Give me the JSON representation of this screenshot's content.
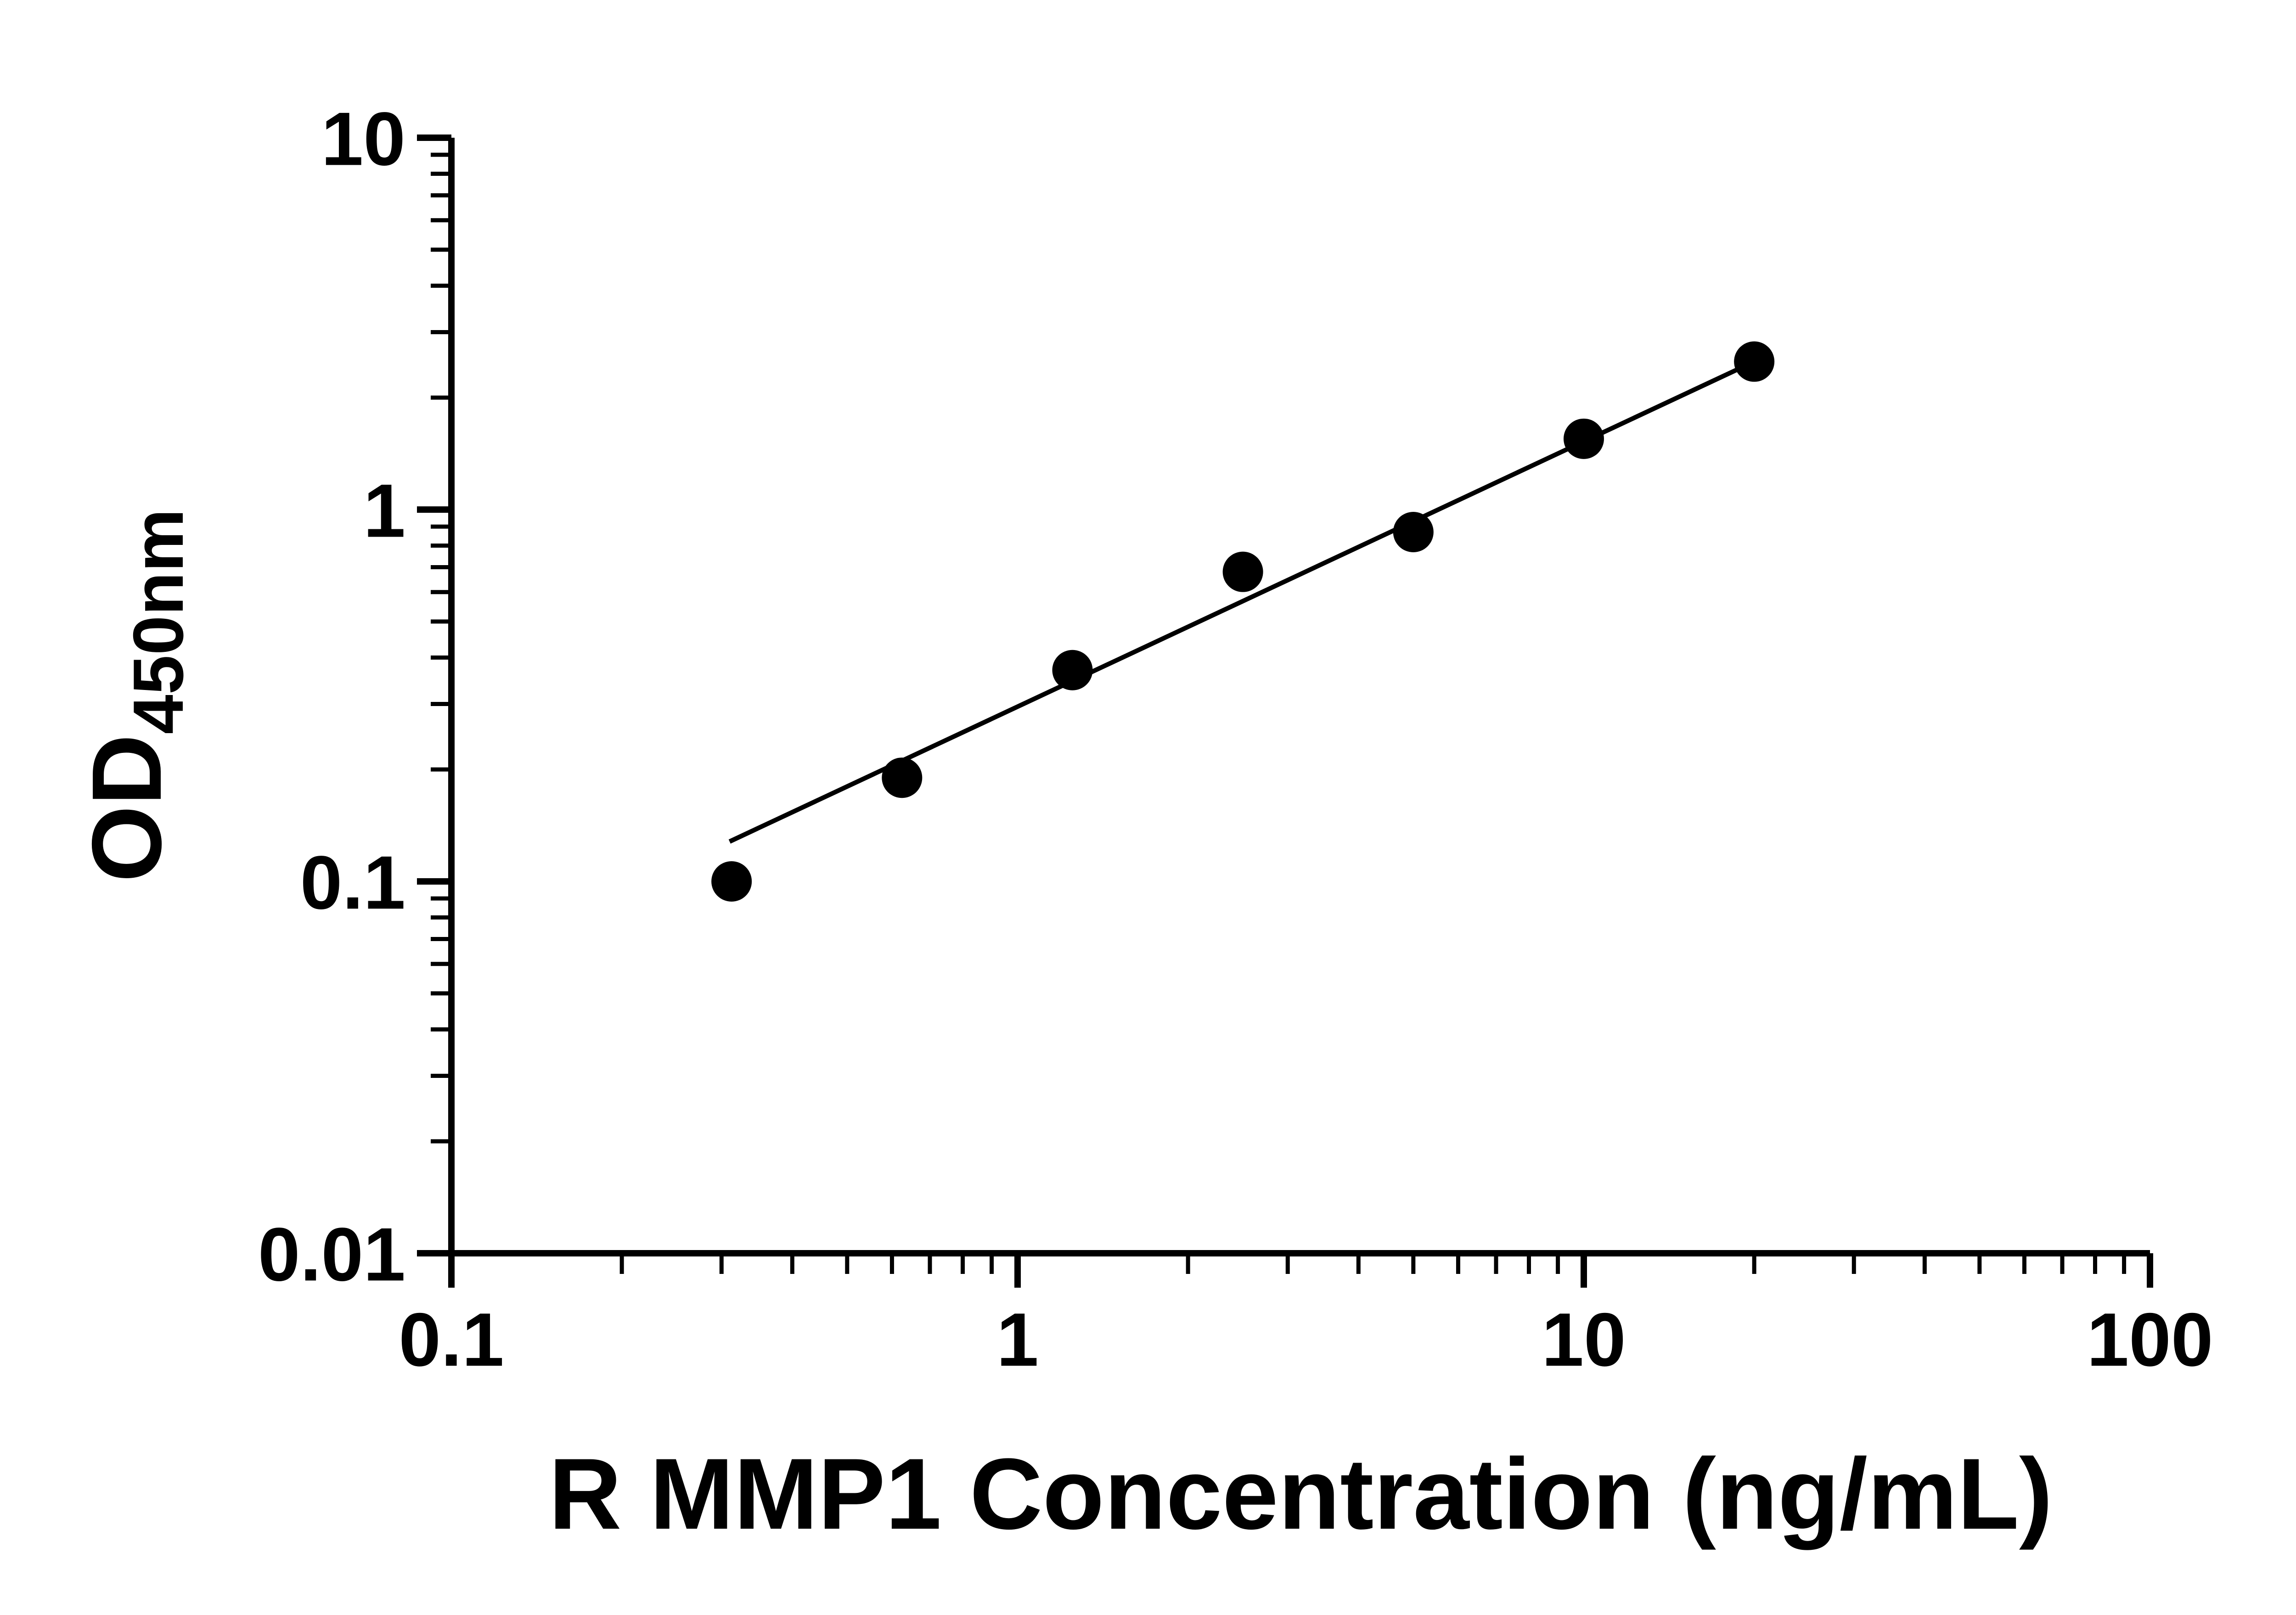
{
  "chart_data": {
    "type": "scatter",
    "title": "",
    "xlabel": "R MMP1 Concentration (ng/mL)",
    "ylabel_main": "OD",
    "ylabel_sub": "450nm",
    "x_scale": "log",
    "y_scale": "log",
    "xlim": [
      0.1,
      100
    ],
    "ylim": [
      0.01,
      10
    ],
    "grid": false,
    "legend": "none",
    "x_ticks": [
      {
        "value": 0.1,
        "label": "0.1"
      },
      {
        "value": 1,
        "label": "1"
      },
      {
        "value": 10,
        "label": "10"
      },
      {
        "value": 100,
        "label": "100"
      }
    ],
    "y_ticks": [
      {
        "value": 0.01,
        "label": "0.01"
      },
      {
        "value": 0.1,
        "label": "0.1"
      },
      {
        "value": 1,
        "label": "1"
      },
      {
        "value": 10,
        "label": "10"
      }
    ],
    "points": [
      {
        "x": 0.3125,
        "y": 0.1
      },
      {
        "x": 0.625,
        "y": 0.19
      },
      {
        "x": 1.25,
        "y": 0.37
      },
      {
        "x": 2.5,
        "y": 0.68
      },
      {
        "x": 5,
        "y": 0.87
      },
      {
        "x": 10,
        "y": 1.55
      },
      {
        "x": 20,
        "y": 2.5
      }
    ],
    "trendline": {
      "x_start": 0.31,
      "y_start": 0.128,
      "x_end": 20,
      "y_end": 2.5
    },
    "colors": {
      "points": "#000000",
      "line": "#000000",
      "axis": "#000000",
      "background": "#ffffff"
    }
  }
}
